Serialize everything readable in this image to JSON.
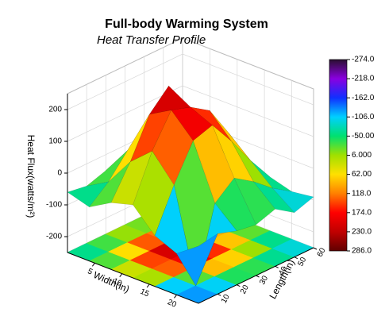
{
  "chart_data": {
    "type": "surface3d",
    "title": "Full-body Warming System",
    "subtitle": "Heat Transfer Profile",
    "xlabel": "Width(in)",
    "ylabel": "Length(in)",
    "zlabel": "Heat Flux(watts/m²)",
    "x": [
      0,
      4,
      8,
      12,
      16,
      20,
      24
    ],
    "y": [
      0,
      10,
      20,
      30,
      40,
      50,
      60
    ],
    "z": [
      [
        -60,
        -80,
        -40,
        -20,
        -90,
        -120,
        -70
      ],
      [
        -70,
        -30,
        60,
        120,
        40,
        -250,
        -60
      ],
      [
        -50,
        40,
        180,
        220,
        150,
        -20,
        -80
      ],
      [
        -60,
        80,
        240,
        200,
        170,
        30,
        -90
      ],
      [
        -90,
        30,
        120,
        160,
        90,
        -10,
        -70
      ],
      [
        -100,
        -40,
        20,
        60,
        0,
        -60,
        -110
      ],
      [
        -80,
        -90,
        -60,
        -50,
        -80,
        -100,
        -90
      ]
    ],
    "xlim": [
      0,
      24
    ],
    "ylim": [
      0,
      60
    ],
    "zlim": [
      -250,
      250
    ],
    "xticks": [
      5,
      10,
      15,
      20
    ],
    "yticks": [
      10,
      20,
      30,
      40,
      50,
      60
    ],
    "zticks": [
      -200,
      -100,
      0,
      100,
      200
    ],
    "colorbar_lim": [
      -274,
      286
    ],
    "colorbar_ticks": [
      {
        "value": -274,
        "label": "-274.0"
      },
      {
        "value": -218,
        "label": "-218.0"
      },
      {
        "value": -162,
        "label": "-162.0"
      },
      {
        "value": -106,
        "label": "-106.0"
      },
      {
        "value": -50,
        "label": "-50.00"
      },
      {
        "value": 6,
        "label": "6.000"
      },
      {
        "value": 62,
        "label": "62.00"
      },
      {
        "value": 118,
        "label": "118.0"
      },
      {
        "value": 174,
        "label": "174.0"
      },
      {
        "value": 230,
        "label": "230.0"
      },
      {
        "value": 286,
        "label": "286.0"
      }
    ],
    "colormap": [
      "#2a0f30",
      "#8a00e0",
      "#1030ff",
      "#00d0ff",
      "#00e070",
      "#a0e000",
      "#ffe000",
      "#ff8000",
      "#ff0000",
      "#c00000",
      "#600000"
    ],
    "grid": true
  }
}
